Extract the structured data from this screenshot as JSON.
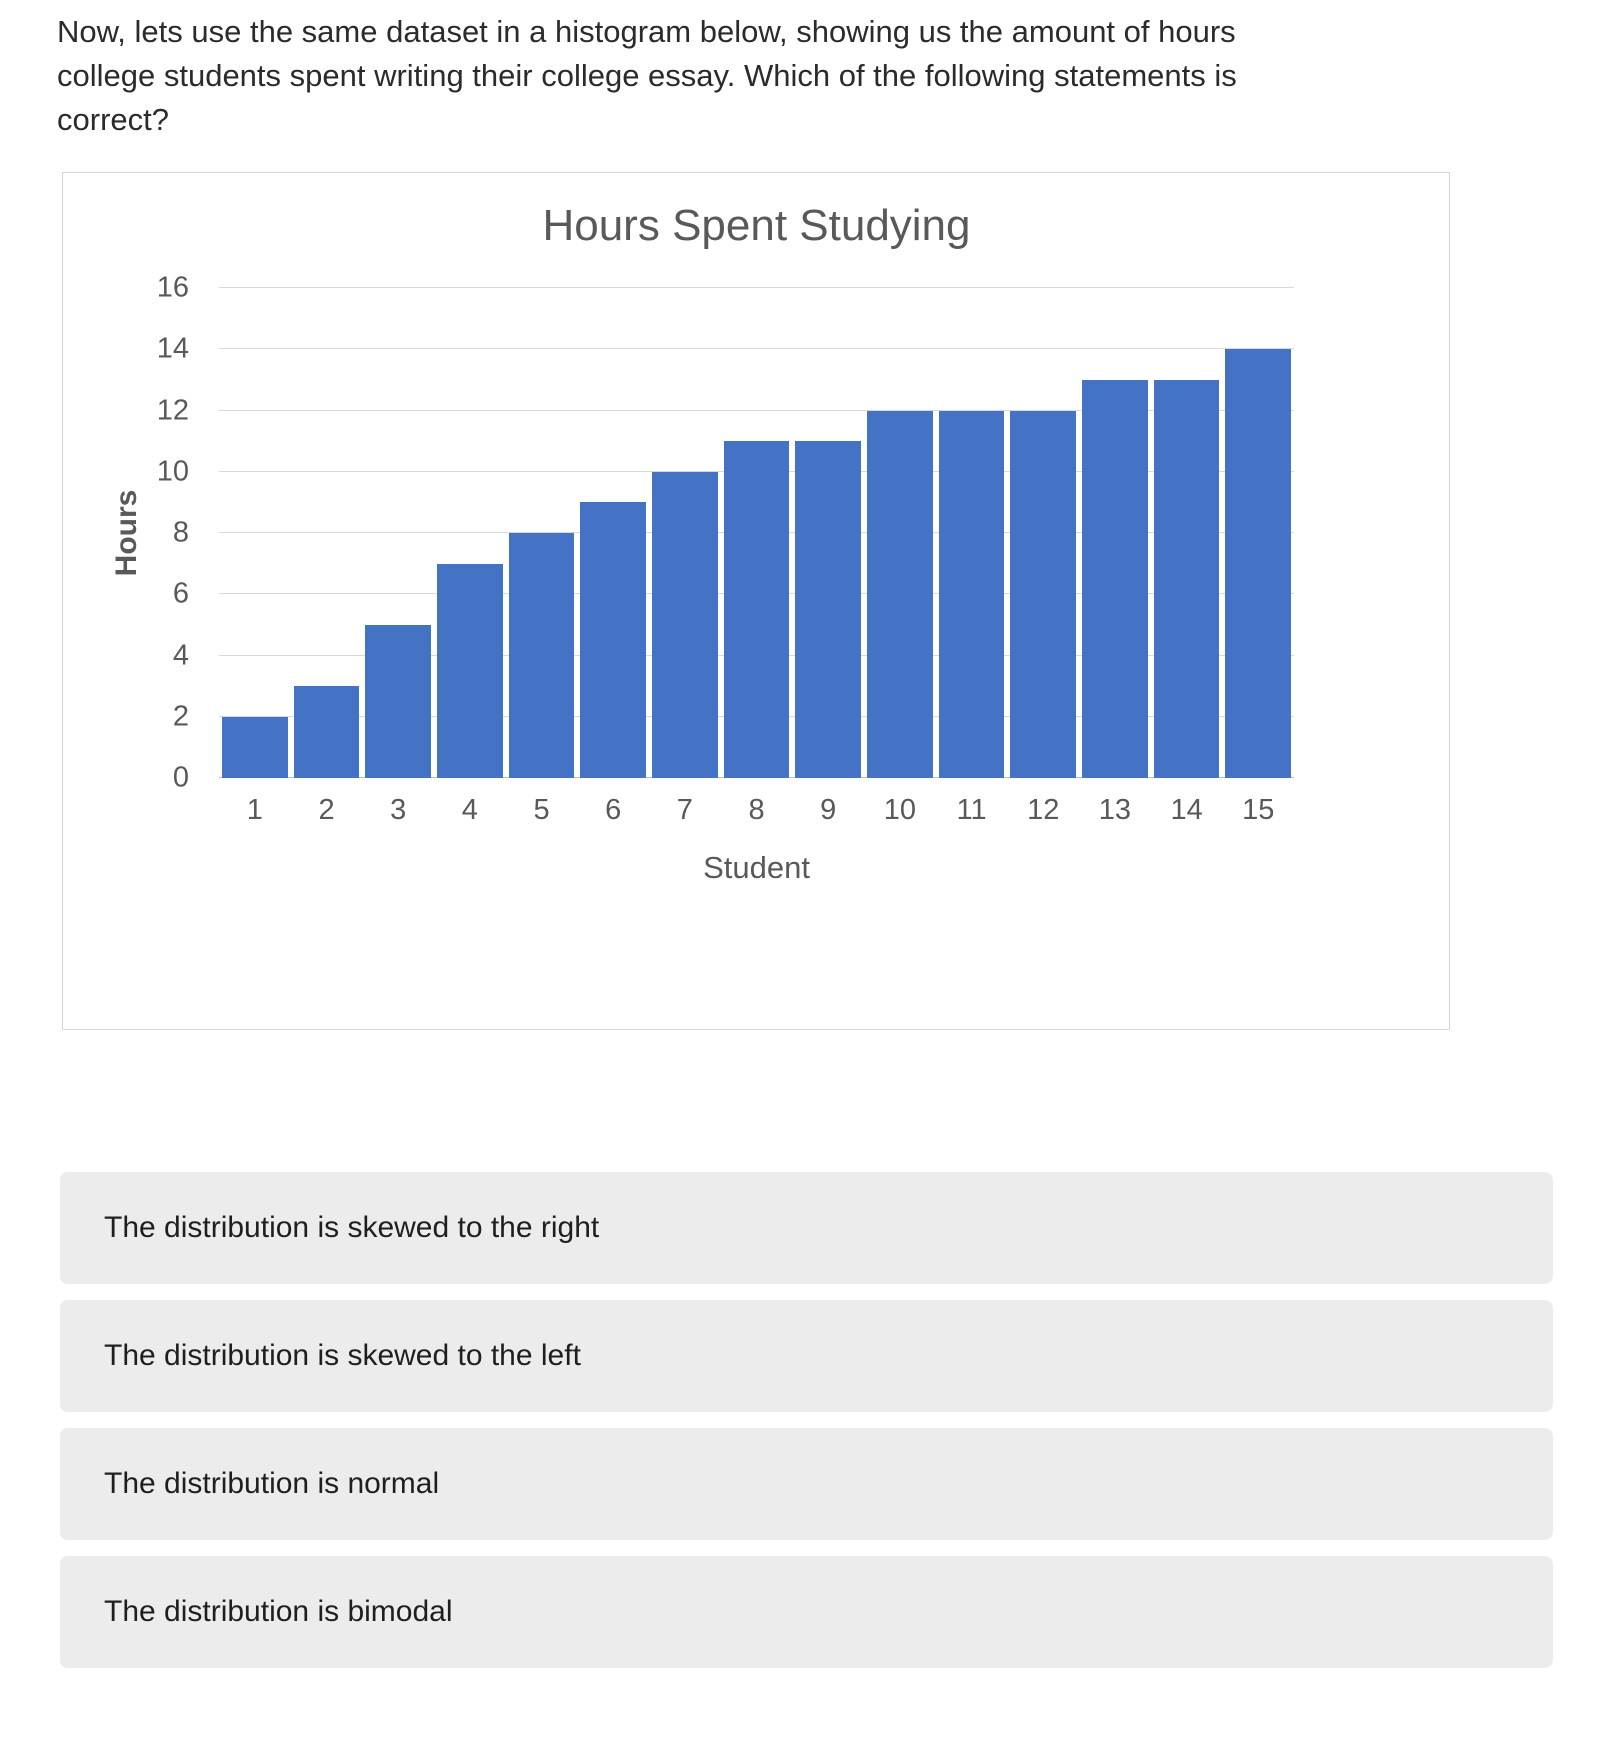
{
  "question": {
    "text": "Now, lets use the same dataset in a histogram below, showing us the amount of hours college students spent writing their college essay. Which of the following statements is correct?"
  },
  "chart_data": {
    "type": "bar",
    "title": "Hours Spent Studying",
    "xlabel": "Student",
    "ylabel": "Hours",
    "categories": [
      "1",
      "2",
      "3",
      "4",
      "5",
      "6",
      "7",
      "8",
      "9",
      "10",
      "11",
      "12",
      "13",
      "14",
      "15"
    ],
    "values": [
      2,
      3,
      5,
      7,
      8,
      9,
      10,
      11,
      11,
      12,
      12,
      12,
      13,
      13,
      14
    ],
    "ylim": [
      0,
      16
    ],
    "ytick_step": 2,
    "grid": true,
    "legend": "none",
    "bar_color": "#4472C4"
  },
  "options": [
    {
      "label": "The distribution is skewed to the right"
    },
    {
      "label": "The distribution is skewed to the left"
    },
    {
      "label": "The distribution is normal"
    },
    {
      "label": "The distribution is bimodal"
    }
  ]
}
